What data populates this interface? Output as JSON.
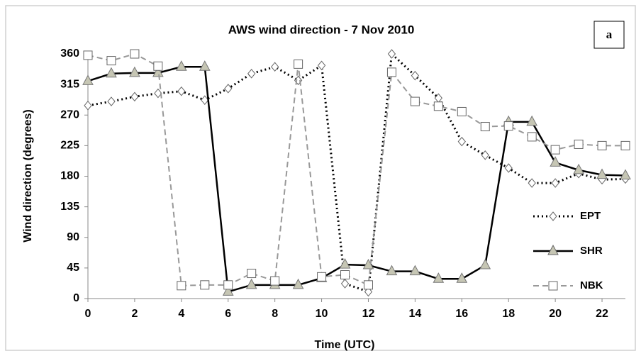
{
  "chart_data": {
    "type": "line",
    "title": "AWS wind direction - 7 Nov 2010",
    "annotation": "a",
    "x_label": "Time (UTC)",
    "y_label": "Wind direction (degrees)",
    "x": [
      0,
      1,
      2,
      3,
      4,
      5,
      6,
      7,
      8,
      9,
      10,
      11,
      12,
      13,
      14,
      15,
      16,
      17,
      18,
      19,
      20,
      21,
      22,
      23
    ],
    "xlim": [
      0,
      23
    ],
    "xticks": [
      0,
      2,
      4,
      6,
      8,
      10,
      12,
      14,
      16,
      18,
      20,
      22
    ],
    "ylim": [
      0,
      360
    ],
    "yticks": [
      0,
      45,
      90,
      135,
      180,
      225,
      270,
      315,
      360
    ],
    "grid": false,
    "legend": "right",
    "series": [
      {
        "name": "EPT",
        "color": "#000000",
        "marker_fill": "#ffffff",
        "marker": "diamond",
        "line_style": "dotted",
        "values": [
          284,
          290,
          297,
          302,
          305,
          292,
          309,
          331,
          341,
          321,
          343,
          22,
          10,
          360,
          328,
          295,
          231,
          211,
          192,
          170,
          170,
          184,
          175,
          176
        ]
      },
      {
        "name": "SHR",
        "color": "#000000",
        "marker_fill": "#c6c6b4",
        "marker": "triangle",
        "line_style": "solid",
        "values": [
          320,
          331,
          332,
          332,
          341,
          341,
          10,
          20,
          20,
          20,
          30,
          50,
          49,
          40,
          40,
          29,
          29,
          49,
          260,
          260,
          200,
          189,
          182,
          181
        ]
      },
      {
        "name": "NBK",
        "color": "#999999",
        "marker_fill": "#ffffff",
        "marker": "square",
        "line_style": "dashed",
        "values": [
          358,
          350,
          360,
          342,
          19,
          20,
          20,
          37,
          26,
          345,
          32,
          35,
          20,
          333,
          290,
          283,
          275,
          253,
          254,
          238,
          219,
          227,
          225,
          225
        ]
      }
    ]
  }
}
